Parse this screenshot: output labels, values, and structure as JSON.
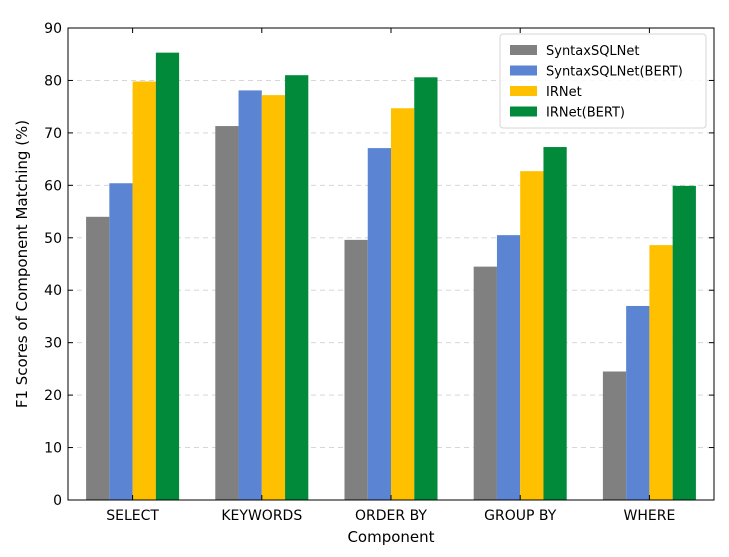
{
  "chart_data": {
    "type": "bar",
    "xlabel": "Component",
    "ylabel": "F1 Scores of Component Matching (%)",
    "categories": [
      "SELECT",
      "KEYWORDS",
      "ORDER BY",
      "GROUP BY",
      "WHERE"
    ],
    "ylim": [
      0,
      90
    ],
    "yticks": [
      0,
      10,
      20,
      30,
      40,
      50,
      60,
      70,
      80,
      90
    ],
    "grid": "horizontal-dashed",
    "legend_position": "top-right",
    "series": [
      {
        "name": "SyntaxSQLNet",
        "color": "#808080",
        "values": [
          54.0,
          71.3,
          49.6,
          44.5,
          24.5
        ]
      },
      {
        "name": "SyntaxSQLNet(BERT)",
        "color": "#5b84d3",
        "values": [
          60.4,
          78.1,
          67.1,
          50.5,
          37.0
        ]
      },
      {
        "name": "IRNet",
        "color": "#ffc000",
        "values": [
          79.8,
          77.2,
          74.7,
          62.7,
          48.6
        ]
      },
      {
        "name": "IRNet(BERT)",
        "color": "#008a3a",
        "values": [
          85.3,
          81.0,
          80.6,
          67.3,
          59.9
        ]
      }
    ]
  }
}
